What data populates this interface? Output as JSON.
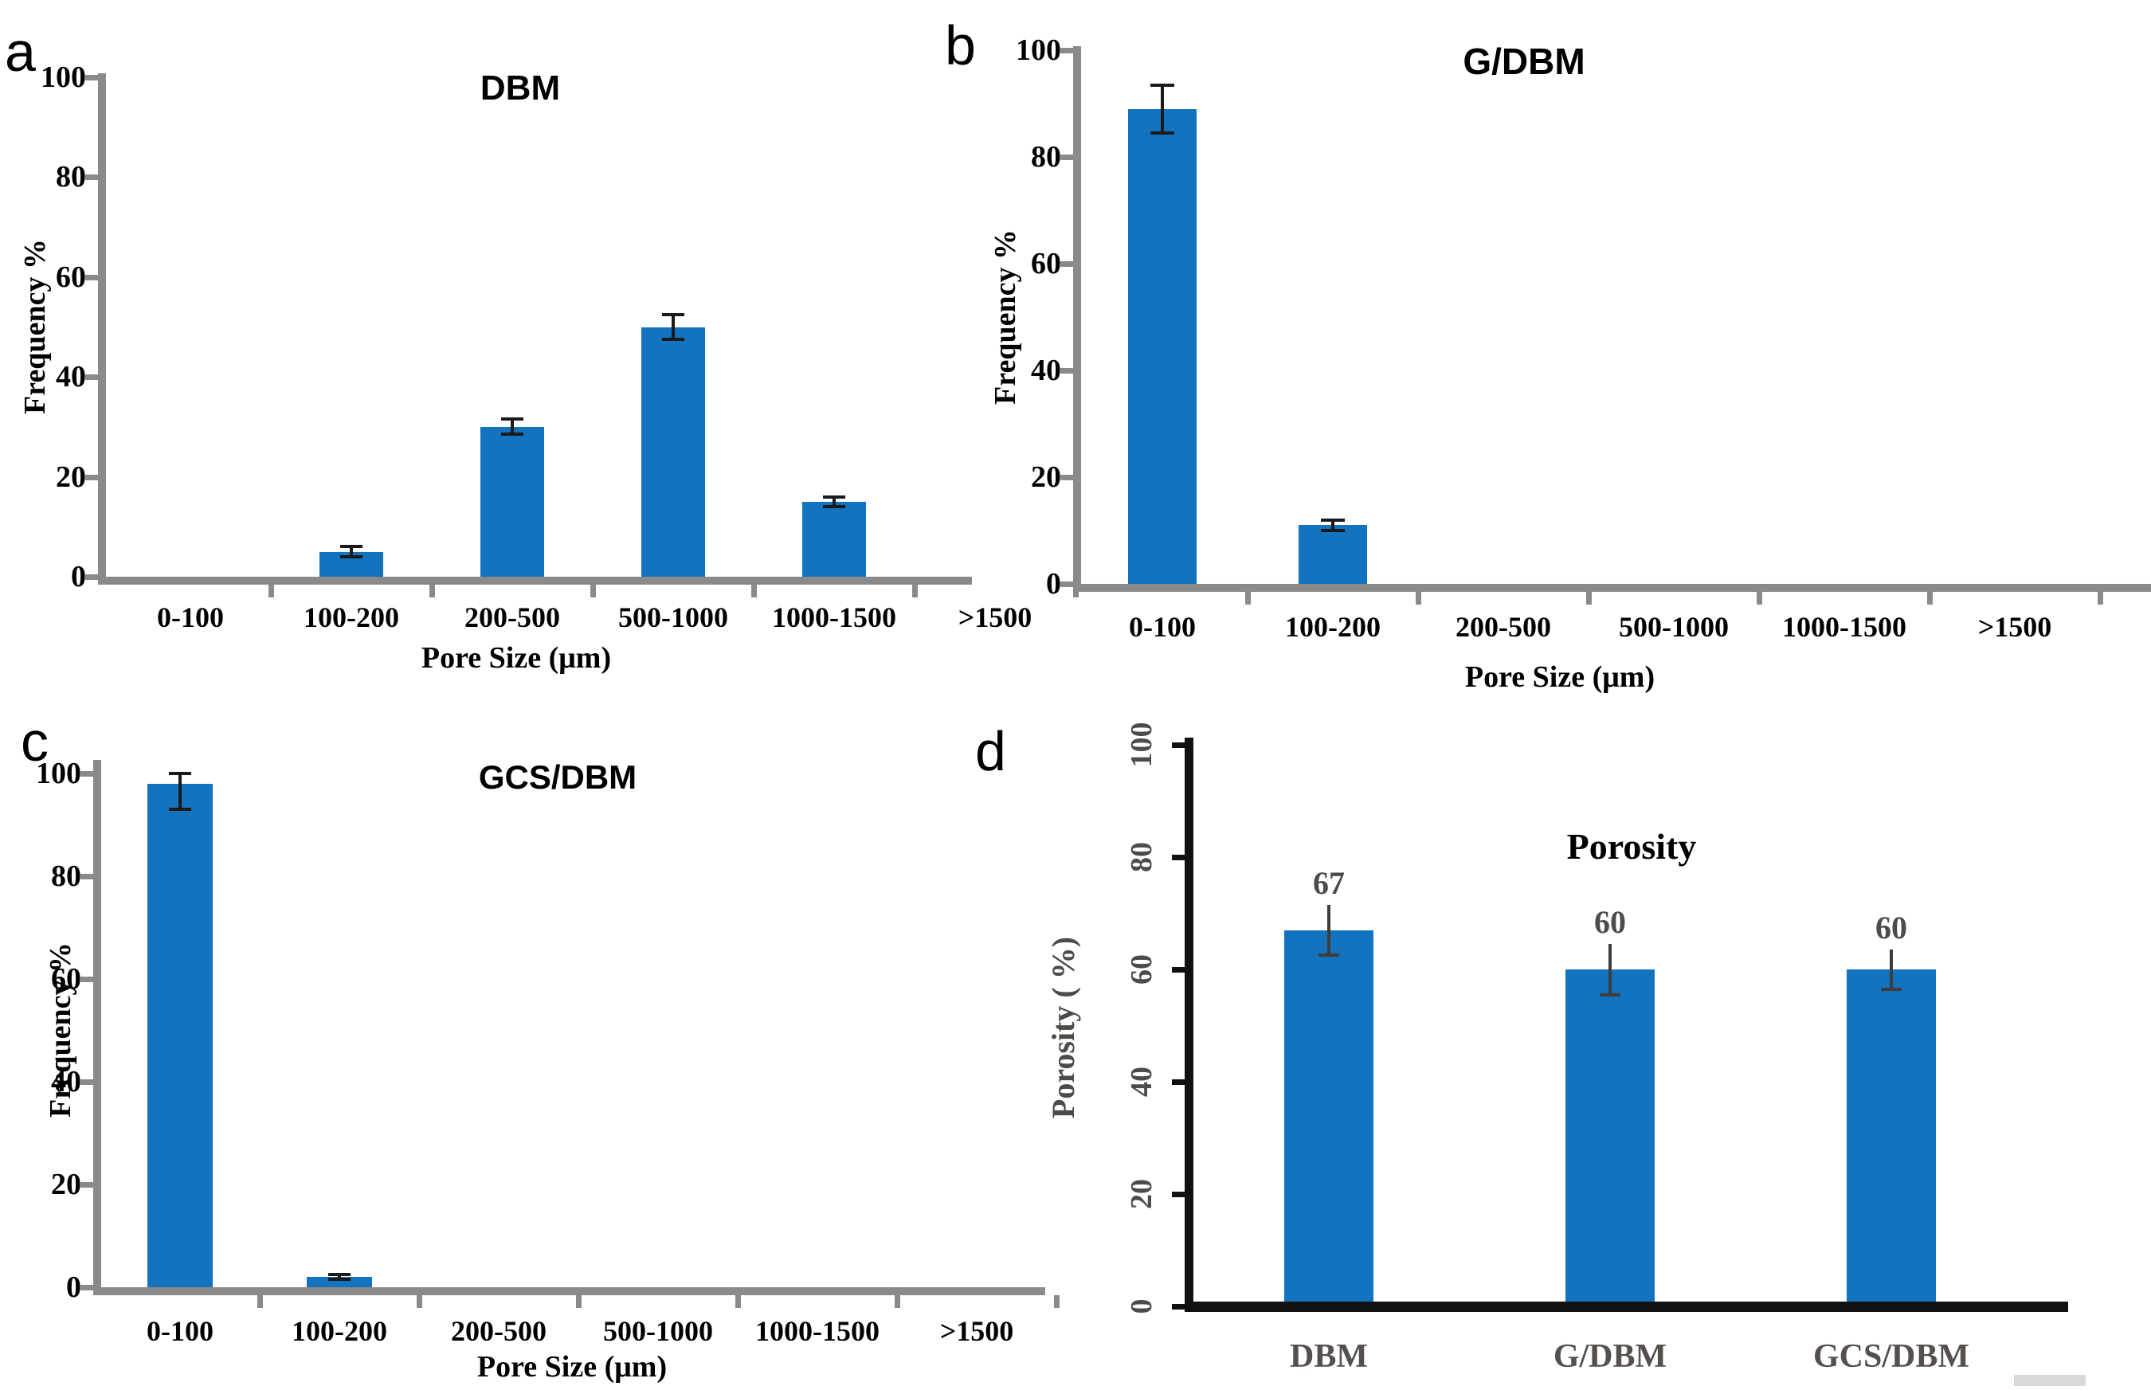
{
  "colors": {
    "bar": "#1373BE",
    "axis_gray": "#8A8A8A",
    "axis_black": "#111111",
    "error_bar": "#1A1A1A",
    "d_error_bar": "#3D3D3D",
    "d_tick_text": "#4E4A47",
    "d_category_text": "#55504D",
    "background": "#FFFFFF"
  },
  "chart_data": [
    {
      "id": "a",
      "panel_letter": "a",
      "type": "bar",
      "title": "DBM",
      "ylabel": "Frequency %",
      "xlabel": "Pore Size (μm)",
      "categories": [
        "0-100",
        "100-200",
        "200-500",
        "500-1000",
        "1000-1500",
        ">1500"
      ],
      "values": [
        0,
        5,
        30,
        50,
        15,
        0
      ],
      "errors_plus": [
        0,
        1,
        1.5,
        2.5,
        1,
        0
      ],
      "errors_minus": [
        0,
        1,
        1.5,
        2.5,
        1,
        0
      ],
      "yticks": [
        0,
        20,
        40,
        60,
        80,
        100
      ],
      "ylim": [
        0,
        100
      ],
      "grid": "off",
      "legend": "none"
    },
    {
      "id": "b",
      "panel_letter": "b",
      "type": "bar",
      "title": "G/DBM",
      "ylabel": "Frequency %",
      "xlabel": "Pore Size (μm)",
      "categories": [
        "0-100",
        "100-200",
        "200-500",
        "500-1000",
        "1000-1500",
        ">1500"
      ],
      "values": [
        89,
        11,
        0,
        0,
        0,
        0
      ],
      "errors_plus": [
        4.5,
        1,
        0,
        0,
        0,
        0
      ],
      "errors_minus": [
        4.5,
        1,
        0,
        0,
        0,
        0
      ],
      "yticks": [
        0,
        20,
        40,
        60,
        80,
        100
      ],
      "ylim": [
        0,
        100
      ],
      "grid": "off",
      "legend": "none"
    },
    {
      "id": "c",
      "panel_letter": "c",
      "type": "bar",
      "title": "GCS/DBM",
      "ylabel": "Frequency %",
      "xlabel": "Pore Size (μm)",
      "categories": [
        "0-100",
        "100-200",
        "200-500",
        "500-1000",
        "1000-1500",
        ">1500"
      ],
      "values": [
        98,
        2,
        0,
        0,
        0,
        0
      ],
      "errors_plus": [
        2,
        0.5,
        0,
        0,
        0,
        0
      ],
      "errors_minus": [
        5,
        0.5,
        0,
        0,
        0,
        0
      ],
      "yticks": [
        0,
        20,
        40,
        60,
        80,
        100
      ],
      "ylim": [
        0,
        100
      ],
      "grid": "off",
      "legend": "none"
    },
    {
      "id": "d",
      "panel_letter": "d",
      "type": "bar",
      "title": "Porosity",
      "ylabel": "Porosity ( %)",
      "xlabel": "",
      "categories": [
        "DBM",
        "G/DBM",
        "GCS/DBM"
      ],
      "values": [
        67,
        60,
        60
      ],
      "data_labels": [
        "67",
        "60",
        "60"
      ],
      "errors_plus": [
        4.5,
        4.5,
        3.5
      ],
      "errors_minus": [
        4.5,
        4.5,
        3.5
      ],
      "yticks": [
        0,
        20,
        40,
        60,
        80,
        100
      ],
      "ylim": [
        0,
        100
      ],
      "grid": "off",
      "legend": "none"
    }
  ]
}
